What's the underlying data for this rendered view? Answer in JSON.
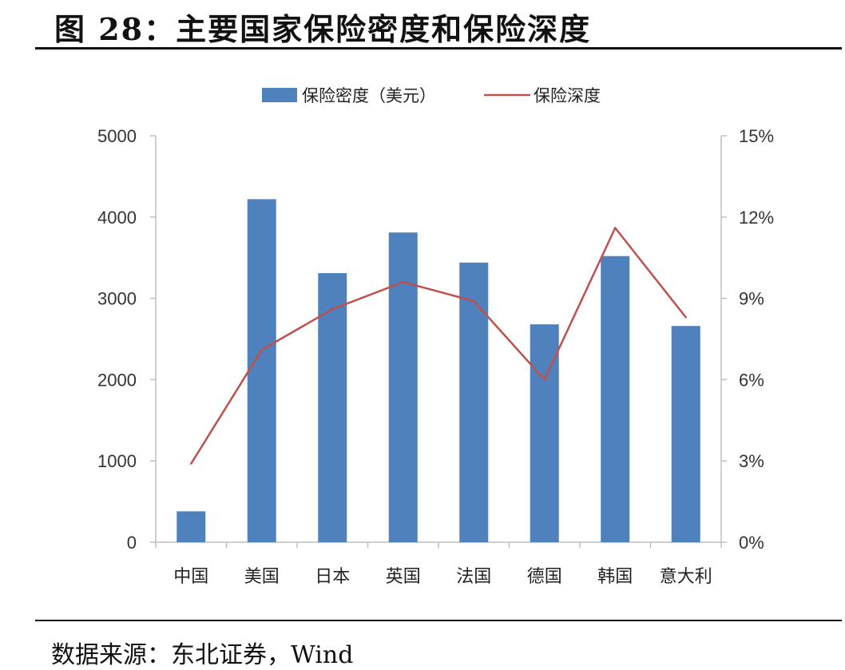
{
  "figure": {
    "title": "图 28：主要国家保险密度和保险深度",
    "source": "数据来源：东北证券，Wind"
  },
  "colors": {
    "bar": "#4f81bd",
    "line": "#c0504d",
    "axis": "#bfbfbf"
  },
  "chart_data": {
    "type": "bar",
    "categories": [
      "中国",
      "美国",
      "日本",
      "英国",
      "法国",
      "德国",
      "韩国",
      "意大利"
    ],
    "series": [
      {
        "name": "保险密度（美元）",
        "type": "bar",
        "axis": "left",
        "values": [
          380,
          4220,
          3310,
          3810,
          3440,
          2680,
          3520,
          2660
        ]
      },
      {
        "name": "保险深度",
        "type": "line",
        "axis": "right",
        "values": [
          2.9,
          7.1,
          8.6,
          9.6,
          8.9,
          6.0,
          11.6,
          8.3
        ]
      }
    ],
    "left_axis": {
      "min": 0,
      "max": 5000,
      "ticks": [
        "0",
        "1000",
        "2000",
        "3000",
        "4000",
        "5000"
      ]
    },
    "right_axis": {
      "min": 0,
      "max": 15,
      "ticks": [
        "0%",
        "3%",
        "6%",
        "9%",
        "12%",
        "15%"
      ]
    },
    "legend_position": "top-center",
    "grid": false
  }
}
